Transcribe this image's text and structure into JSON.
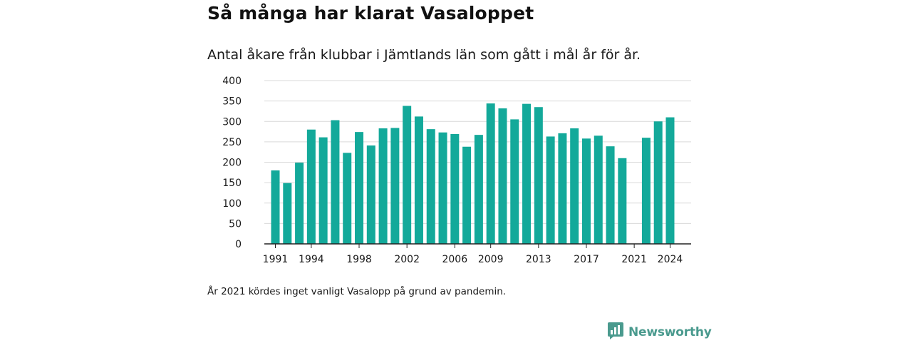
{
  "header": {
    "title": "Så många har klarat Vasaloppet",
    "subtitle": "Antal åkare från klubbar i Jämtlands län som gått i mål år för år."
  },
  "footer": {
    "note": "År 2021 kördes inget vanligt Vasalopp på grund av pandemin.",
    "brand": "Newsworthy",
    "brand_icon": "newsworthy-logo-icon"
  },
  "colors": {
    "bar": "#13a99a",
    "grid": "#d9d9d9",
    "axis": "#222222",
    "brand": "#4a9a8e"
  },
  "chart_data": {
    "type": "bar",
    "title": "Så många har klarat Vasaloppet",
    "subtitle": "Antal åkare från klubbar i Jämtlands län som gått i mål år för år.",
    "xlabel": "",
    "ylabel": "",
    "categories": [
      "1991",
      "1992",
      "1993",
      "1994",
      "1995",
      "1996",
      "1997",
      "1998",
      "1999",
      "2000",
      "2001",
      "2002",
      "2003",
      "2004",
      "2005",
      "2006",
      "2007",
      "2008",
      "2009",
      "2010",
      "2011",
      "2012",
      "2013",
      "2014",
      "2015",
      "2016",
      "2017",
      "2018",
      "2019",
      "2020",
      "2021",
      "2022",
      "2023",
      "2024"
    ],
    "values": [
      180,
      149,
      199,
      280,
      261,
      303,
      223,
      274,
      241,
      283,
      284,
      338,
      312,
      281,
      273,
      269,
      238,
      267,
      344,
      332,
      305,
      343,
      335,
      263,
      271,
      283,
      258,
      265,
      239,
      210,
      null,
      260,
      300,
      310
    ],
    "ylim": [
      0,
      400
    ],
    "yticks": [
      "0",
      "50",
      "100",
      "150",
      "200",
      "250",
      "300",
      "350",
      "400"
    ],
    "xtick_labels": [
      "1991",
      "1994",
      "1998",
      "2002",
      "2006",
      "2009",
      "2013",
      "2017",
      "2021",
      "2024"
    ],
    "grid": true,
    "legend": "none"
  }
}
